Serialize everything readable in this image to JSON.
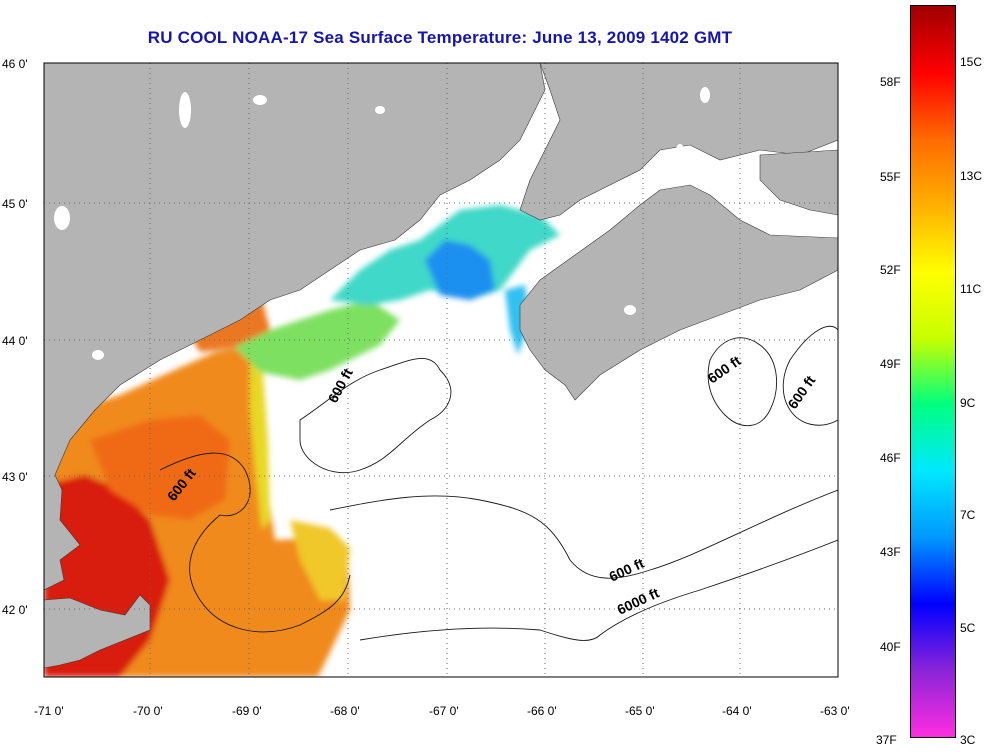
{
  "title": "RU COOL  NOAA-17  Sea Surface Temperature:  June 13, 2009 1402 GMT",
  "map": {
    "lon_range": [
      -71,
      -63
    ],
    "lat_range": [
      41.5,
      46
    ],
    "lon_labels": [
      "-71 0'",
      "-70 0'",
      "-69 0'",
      "-68 0'",
      "-67 0'",
      "-66 0'",
      "-65 0'",
      "-64 0'",
      "-63 0'"
    ],
    "lat_labels": [
      "46 0'",
      "45 0'",
      "44 0'",
      "43 0'",
      "42 0'"
    ],
    "grid": "dotted",
    "land_color": "#b4b4b4",
    "contour_labels": [
      "600 ft",
      "600 ft",
      "600 ft",
      "600 ft",
      "600 ft",
      "6000 ft"
    ]
  },
  "colorbar": {
    "fahrenheit_labels": [
      "58F",
      "55F",
      "52F",
      "49F",
      "46F",
      "43F",
      "40F",
      "37F"
    ],
    "celsius_labels": [
      "15C",
      "13C",
      "11C",
      "9C",
      "7C",
      "5C",
      "3C"
    ],
    "range_c": [
      3,
      16
    ],
    "colors": [
      "#ff2ee0",
      "#8a24d8",
      "#0000ff",
      "#0098ff",
      "#00e8ff",
      "#00ff80",
      "#c8ff00",
      "#ffff00",
      "#ffb000",
      "#ff6a00",
      "#ff0000",
      "#a00000"
    ]
  }
}
